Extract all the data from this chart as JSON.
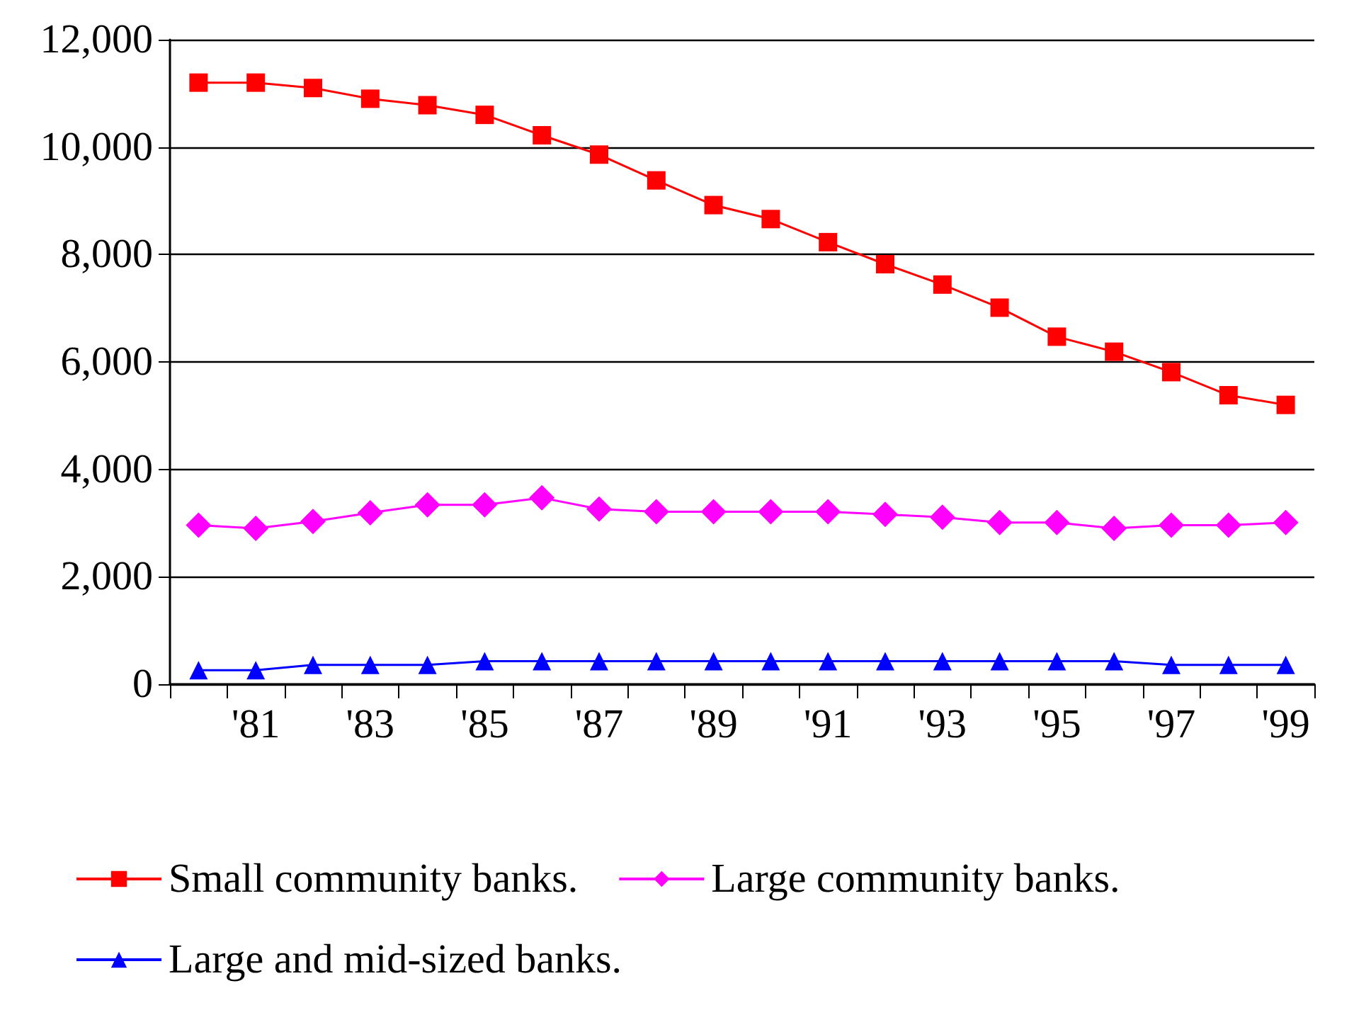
{
  "chart_data": {
    "type": "line",
    "categories": [
      null,
      "'81",
      null,
      "'83",
      null,
      "'85",
      null,
      "'87",
      null,
      "'89",
      null,
      "'91",
      null,
      "'93",
      null,
      "'95",
      null,
      "'97",
      null,
      "'99"
    ],
    "series": [
      {
        "name": "Small community banks.",
        "color": "#ff0000",
        "marker": "square",
        "values": [
          11200,
          11200,
          11100,
          10900,
          10780,
          10600,
          10220,
          9860,
          9380,
          8920,
          8660,
          8230,
          7820,
          7440,
          7010,
          6470,
          6190,
          5810,
          5380,
          5200
        ]
      },
      {
        "name": "Large community banks.",
        "color": "#ff00ff",
        "marker": "diamond",
        "values": [
          2960,
          2900,
          3030,
          3190,
          3340,
          3340,
          3470,
          3260,
          3210,
          3210,
          3210,
          3210,
          3160,
          3110,
          3010,
          3010,
          2900,
          2960,
          2960,
          3010
        ]
      },
      {
        "name": "Large and mid-sized banks.",
        "color": "#0000ff",
        "marker": "triangle",
        "values": [
          260,
          260,
          360,
          360,
          360,
          430,
          430,
          430,
          430,
          430,
          430,
          430,
          430,
          430,
          430,
          430,
          430,
          360,
          360,
          360
        ]
      }
    ],
    "ylim": [
      0,
      12000
    ],
    "yticks": [
      0,
      {
        "value": 2000,
        "label": "2,000"
      },
      {
        "value": 4000,
        "label": "4,000"
      },
      {
        "value": 6000,
        "label": "6,000"
      },
      {
        "value": 8000,
        "label": "8,000"
      },
      {
        "value": 10000,
        "label": "10,000"
      },
      {
        "value": 12000,
        "label": "12,000"
      }
    ],
    "grid": "y",
    "legend": "bottom",
    "line_style": "solid"
  }
}
